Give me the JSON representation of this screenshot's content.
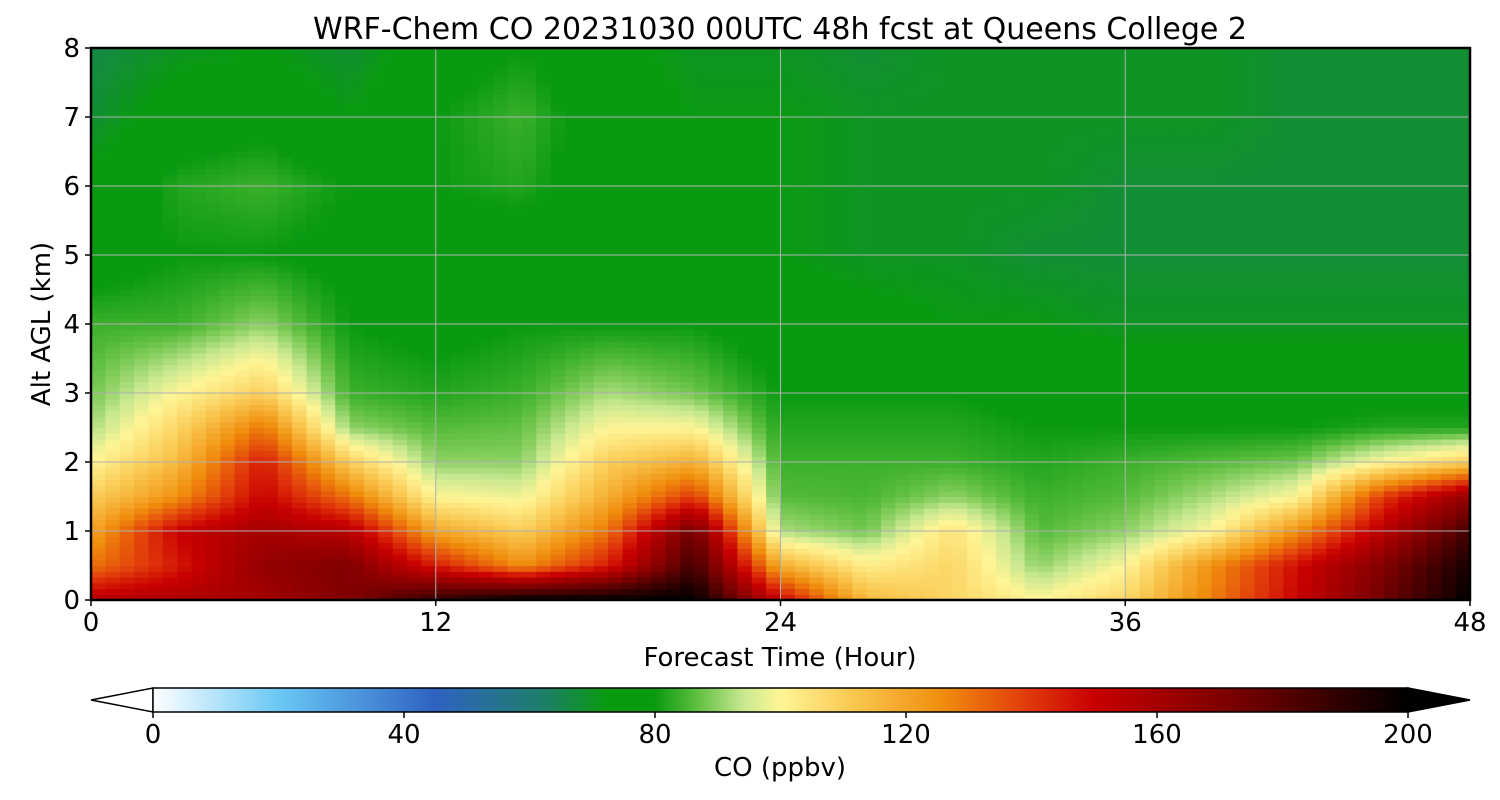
{
  "chart_data": {
    "type": "heatmap",
    "title": "WRF-Chem CO  20231030 00UTC 48h fcst at Queens College 2",
    "xlabel": "Forecast Time (Hour)",
    "ylabel": "Alt AGL (km)",
    "xlim": [
      0,
      48
    ],
    "ylim": [
      0,
      8
    ],
    "x_ticks": [
      0,
      12,
      24,
      36,
      48
    ],
    "y_ticks": [
      0,
      1,
      2,
      3,
      4,
      5,
      6,
      7,
      8
    ],
    "grid": true,
    "colorbar": {
      "label": "CO  (ppbv)",
      "min": 0,
      "max": 200,
      "ticks": [
        0,
        40,
        80,
        120,
        160,
        200
      ],
      "extend": "both",
      "stops": [
        {
          "v": 0,
          "color": "#ffffff"
        },
        {
          "v": 20,
          "color": "#6ac8f5"
        },
        {
          "v": 45,
          "color": "#2e62c2"
        },
        {
          "v": 62,
          "color": "#1e7e6a"
        },
        {
          "v": 72,
          "color": "#0a9a12"
        },
        {
          "v": 80,
          "color": "#0a9a12"
        },
        {
          "v": 86,
          "color": "#55bb3a"
        },
        {
          "v": 94,
          "color": "#c8e890"
        },
        {
          "v": 100,
          "color": "#fff596"
        },
        {
          "v": 112,
          "color": "#f9c64e"
        },
        {
          "v": 126,
          "color": "#f08c0c"
        },
        {
          "v": 140,
          "color": "#e0360a"
        },
        {
          "v": 150,
          "color": "#c80000"
        },
        {
          "v": 172,
          "color": "#7a0000"
        },
        {
          "v": 200,
          "color": "#000000"
        }
      ]
    },
    "times": [
      0,
      3,
      6,
      9,
      12,
      15,
      18,
      21,
      24,
      27,
      30,
      33,
      36,
      39,
      42,
      45,
      48
    ],
    "altitudes": [
      0,
      0.5,
      1,
      1.5,
      2,
      2.5,
      3,
      4,
      5,
      6,
      7,
      8
    ],
    "values": [
      [
        155,
        158,
        160,
        170,
        190,
        200,
        200,
        200,
        150,
        115,
        108,
        100,
        108,
        128,
        150,
        175,
        200
      ],
      [
        130,
        145,
        165,
        170,
        145,
        125,
        145,
        185,
        118,
        102,
        108,
        90,
        100,
        125,
        148,
        170,
        195
      ],
      [
        120,
        150,
        160,
        155,
        120,
        110,
        130,
        175,
        92,
        88,
        105,
        86,
        90,
        100,
        125,
        155,
        185
      ],
      [
        110,
        125,
        150,
        130,
        100,
        98,
        118,
        140,
        86,
        85,
        90,
        84,
        86,
        92,
        100,
        140,
        165
      ],
      [
        100,
        115,
        145,
        110,
        90,
        90,
        110,
        118,
        84,
        84,
        84,
        82,
        84,
        86,
        88,
        100,
        110
      ],
      [
        92,
        108,
        130,
        90,
        86,
        87,
        100,
        100,
        82,
        82,
        82,
        80,
        80,
        80,
        80,
        82,
        82
      ],
      [
        88,
        100,
        110,
        84,
        82,
        84,
        92,
        88,
        80,
        80,
        80,
        78,
        78,
        78,
        78,
        78,
        78
      ],
      [
        84,
        84,
        90,
        80,
        78,
        80,
        80,
        80,
        76,
        74,
        72,
        72,
        70,
        70,
        70,
        70,
        70
      ],
      [
        76,
        80,
        80,
        78,
        76,
        76,
        74,
        72,
        72,
        70,
        70,
        68,
        68,
        68,
        68,
        68,
        68
      ],
      [
        74,
        82,
        84,
        80,
        80,
        82,
        76,
        72,
        72,
        70,
        70,
        70,
        68,
        68,
        68,
        68,
        68
      ],
      [
        68,
        76,
        78,
        72,
        80,
        84,
        76,
        72,
        72,
        70,
        70,
        70,
        70,
        70,
        68,
        68,
        68
      ],
      [
        66,
        70,
        72,
        68,
        76,
        80,
        74,
        70,
        70,
        68,
        70,
        70,
        70,
        70,
        68,
        68,
        68
      ]
    ]
  }
}
